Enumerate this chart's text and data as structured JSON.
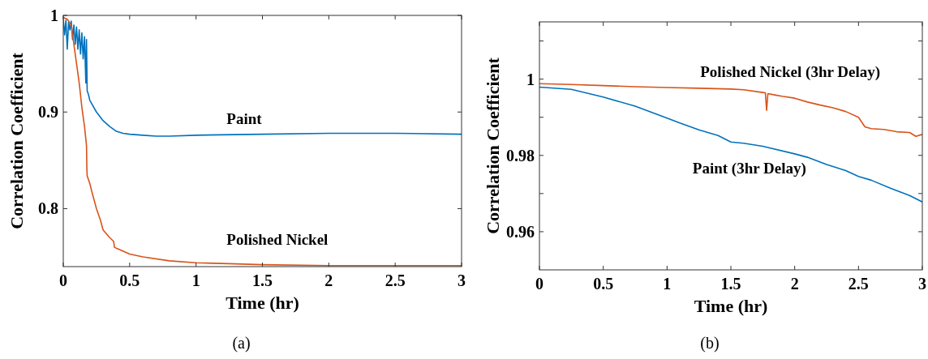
{
  "chart_data": [
    {
      "type": "line",
      "xlabel": "Time (hr)",
      "ylabel": "Correlation Coefficient",
      "annotations": [
        "(a)"
      ],
      "xlim": [
        0,
        3
      ],
      "ylim": [
        0.74,
        1
      ],
      "xticks": [
        0,
        0.5,
        1,
        1.5,
        2,
        2.5,
        3
      ],
      "yticks": [
        0.8,
        0.9,
        1
      ],
      "grid": false,
      "series": [
        {
          "name": "Paint",
          "color": "#0072bd",
          "x": [
            0,
            0.01,
            0.02,
            0.03,
            0.04,
            0.05,
            0.06,
            0.07,
            0.08,
            0.09,
            0.1,
            0.11,
            0.12,
            0.13,
            0.14,
            0.15,
            0.16,
            0.17,
            0.175,
            0.18,
            0.19,
            0.2,
            0.25,
            0.3,
            0.35,
            0.4,
            0.45,
            0.5,
            0.6,
            0.7,
            0.8,
            1,
            1.5,
            2,
            2.5,
            3
          ],
          "values": [
            0.996,
            0.98,
            0.995,
            0.965,
            0.993,
            0.985,
            0.994,
            0.975,
            0.99,
            0.97,
            0.988,
            0.965,
            0.985,
            0.96,
            0.982,
            0.955,
            0.978,
            0.93,
            0.975,
            0.922,
            0.918,
            0.912,
            0.9,
            0.891,
            0.885,
            0.88,
            0.878,
            0.877,
            0.876,
            0.875,
            0.875,
            0.876,
            0.877,
            0.878,
            0.878,
            0.877
          ]
        },
        {
          "name": "Polished Nickel",
          "color": "#d95319",
          "x": [
            0,
            0.03,
            0.06,
            0.08,
            0.1,
            0.12,
            0.14,
            0.16,
            0.17,
            0.175,
            0.178,
            0.18,
            0.2,
            0.22,
            0.25,
            0.28,
            0.3,
            0.35,
            0.38,
            0.385,
            0.4,
            0.5,
            0.6,
            0.8,
            1,
            1.25,
            1.5,
            2,
            2.5,
            3
          ],
          "values": [
            0.998,
            0.996,
            0.99,
            0.97,
            0.95,
            0.93,
            0.905,
            0.885,
            0.872,
            0.865,
            0.84,
            0.834,
            0.826,
            0.815,
            0.8,
            0.788,
            0.778,
            0.77,
            0.766,
            0.76,
            0.759,
            0.753,
            0.75,
            0.746,
            0.744,
            0.743,
            0.742,
            0.741,
            0.741,
            0.741
          ]
        }
      ]
    },
    {
      "type": "line",
      "xlabel": "Time (hr)",
      "ylabel": "Correlation Coefficient",
      "annotations": [
        "(b)"
      ],
      "xlim": [
        0,
        3
      ],
      "ylim": [
        0.95,
        1.015
      ],
      "xticks": [
        0,
        0.5,
        1,
        1.5,
        2,
        2.5,
        3
      ],
      "yticks": [
        0.96,
        {
          "value": 0.97,
          "label": null
        },
        0.98,
        {
          "value": 0.99,
          "label": null
        },
        1,
        {
          "value": 1.01,
          "label": null
        }
      ],
      "grid": false,
      "series": [
        {
          "name": "Polished Nickel (3hr Delay)",
          "color": "#d95319",
          "x": [
            0,
            0.25,
            0.5,
            0.75,
            1,
            1.25,
            1.5,
            1.6,
            1.75,
            1.77,
            1.78,
            1.79,
            1.85,
            1.9,
            2,
            2.1,
            2.2,
            2.3,
            2.4,
            2.5,
            2.55,
            2.6,
            2.7,
            2.8,
            2.9,
            2.95,
            3
          ],
          "values": [
            0.9988,
            0.9986,
            0.9983,
            0.998,
            0.9978,
            0.9976,
            0.9974,
            0.9972,
            0.9965,
            0.9964,
            0.9918,
            0.9962,
            0.9958,
            0.9955,
            0.995,
            0.994,
            0.9932,
            0.9925,
            0.9915,
            0.99,
            0.9875,
            0.987,
            0.9868,
            0.9862,
            0.986,
            0.985,
            0.9855
          ]
        },
        {
          "name": "Paint (3hr Delay)",
          "color": "#0072bd",
          "x": [
            0,
            0.25,
            0.5,
            0.75,
            1,
            1.1,
            1.25,
            1.4,
            1.5,
            1.6,
            1.75,
            2,
            2.1,
            2.25,
            2.4,
            2.5,
            2.6,
            2.75,
            2.9,
            3
          ],
          "values": [
            0.9979,
            0.9973,
            0.9953,
            0.9929,
            0.9898,
            0.9885,
            0.9867,
            0.9852,
            0.9835,
            0.9832,
            0.9824,
            0.9804,
            0.9795,
            0.9776,
            0.976,
            0.9745,
            0.9735,
            0.9714,
            0.9695,
            0.9678
          ]
        }
      ]
    }
  ]
}
